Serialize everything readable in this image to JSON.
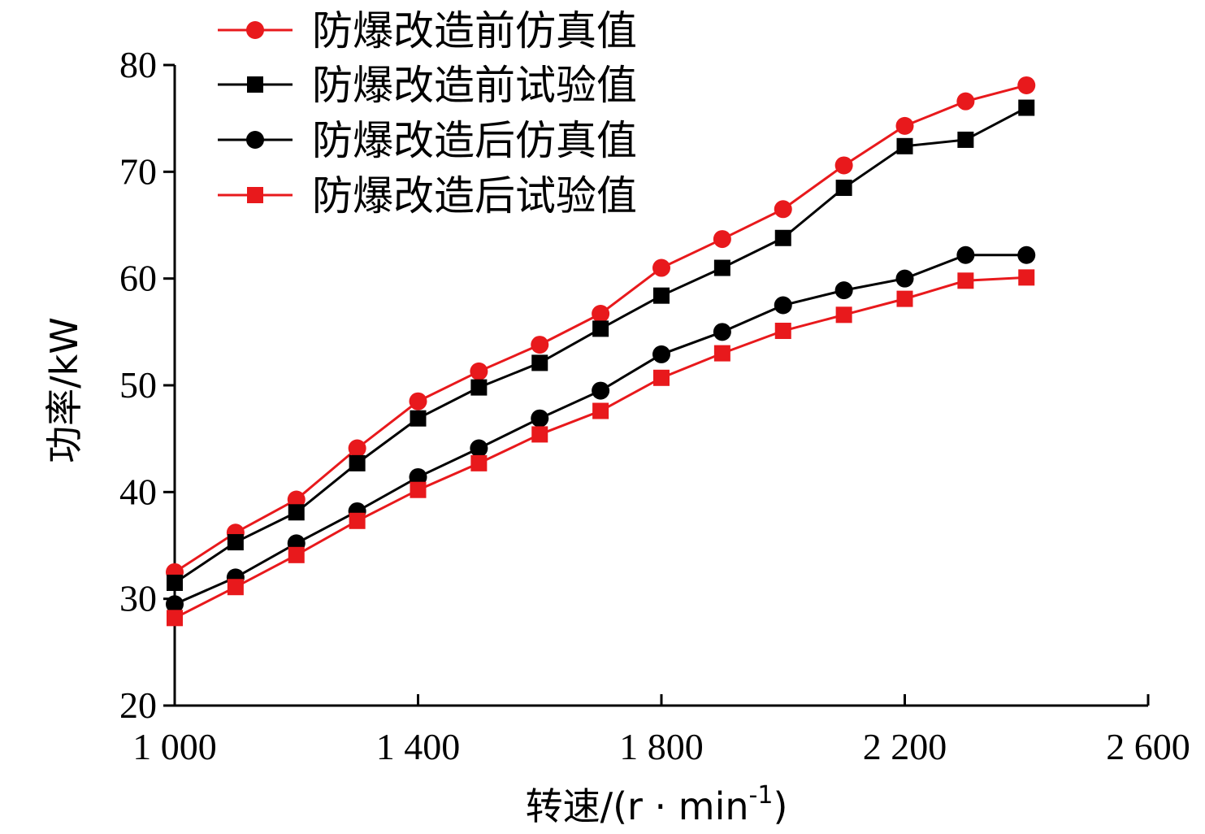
{
  "chart_data": {
    "type": "line",
    "title": "",
    "xlabel": "转速/(r · min",
    "xlabel_sup": "-1",
    "xlabel_tail": ")",
    "ylabel": "功率/kW",
    "xlim": [
      1000,
      2600
    ],
    "ylim": [
      20,
      80
    ],
    "xticks": [
      1000,
      1400,
      1800,
      2200,
      2600
    ],
    "xtick_labels": [
      "1 000",
      "1 400",
      "1 800",
      "2 200",
      "2 600"
    ],
    "yticks": [
      20,
      30,
      40,
      50,
      60,
      70,
      80
    ],
    "ytick_labels": [
      "20",
      "30",
      "40",
      "50",
      "60",
      "70",
      "80"
    ],
    "x": [
      1000,
      1100,
      1200,
      1300,
      1400,
      1500,
      1600,
      1700,
      1800,
      1900,
      2000,
      2100,
      2200,
      2300,
      2400
    ],
    "legend_position": "top-left",
    "series": [
      {
        "name": "防爆改造前仿真值",
        "color": "#e8191c",
        "marker": "circle",
        "values": [
          32.5,
          36.2,
          39.3,
          44.1,
          48.5,
          51.3,
          53.8,
          56.7,
          61.0,
          63.7,
          66.5,
          70.6,
          74.3,
          76.6,
          78.1
        ]
      },
      {
        "name": "防爆改造前试验值",
        "color": "#000000",
        "marker": "square",
        "values": [
          31.5,
          35.3,
          38.1,
          42.7,
          46.9,
          49.8,
          52.1,
          55.3,
          58.4,
          61.0,
          63.8,
          68.5,
          72.4,
          73.0,
          76.0
        ]
      },
      {
        "name": "防爆改造后仿真值",
        "color": "#000000",
        "marker": "circle",
        "values": [
          29.5,
          32.0,
          35.2,
          38.2,
          41.4,
          44.1,
          46.9,
          49.5,
          52.9,
          55.0,
          57.5,
          58.9,
          60.0,
          62.2,
          62.2
        ]
      },
      {
        "name": "防爆改造后试验值",
        "color": "#e8191c",
        "marker": "square",
        "values": [
          28.2,
          31.1,
          34.1,
          37.3,
          40.2,
          42.7,
          45.4,
          47.6,
          50.7,
          53.0,
          55.1,
          56.6,
          58.1,
          59.8,
          60.1
        ]
      }
    ]
  }
}
